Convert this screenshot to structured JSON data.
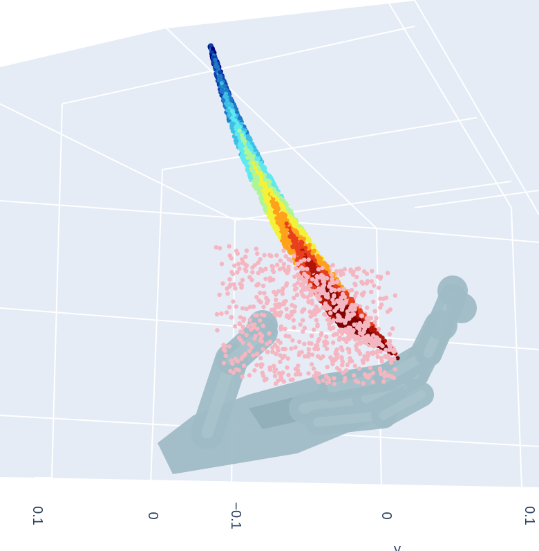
{
  "chart_data": {
    "type": "scatter",
    "dimension": "3d",
    "scene_background": "#e5ecf6",
    "grid": true,
    "grid_color": "#ffffff",
    "tick_color": "#2a3f5f",
    "x_axis": {
      "ticks": [
        "0.1",
        "0",
        "−0.1"
      ],
      "tick_values": [
        0.1,
        0,
        -0.1
      ]
    },
    "y_axis": {
      "ticks": [
        "0",
        "0.1"
      ],
      "tick_values": [
        0,
        0.1
      ],
      "label": "y"
    },
    "series": [
      {
        "kind": "point-cloud",
        "colorscale": "Jet",
        "colors": [
          "#00007f",
          "#0a3fa8",
          "#1f78c8",
          "#3fbfe6",
          "#5fe8f0",
          "#aef59a",
          "#f2f23a",
          "#ffa21a",
          "#e8401c",
          "#b31408",
          "#7f0000"
        ]
      },
      {
        "kind": "point-cloud",
        "color": "#f4b6c0"
      },
      {
        "kind": "mesh",
        "description": "robotic hand",
        "color": "#9fbcc6"
      }
    ]
  }
}
